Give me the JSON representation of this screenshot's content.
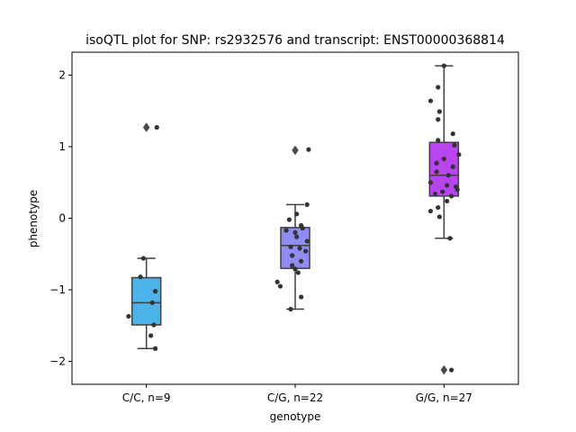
{
  "chart_data": {
    "type": "box",
    "title": "isoQTL plot for SNP: rs2932576 and transcript: ENST00000368814",
    "xlabel": "genotype",
    "ylabel": "phenotype",
    "ylim": [
      -2.32,
      2.32
    ],
    "yticks": [
      -2,
      -1,
      0,
      1,
      2
    ],
    "yticklabels": [
      "−2",
      "−1",
      "0",
      "1",
      "2"
    ],
    "categories": [
      "C/C, n=9",
      "C/G, n=22",
      "G/G, n=27"
    ],
    "grid": false,
    "boxes": [
      {
        "category": "C/C, n=9",
        "color": "#4cb2ea",
        "q1": -1.49,
        "median": -1.18,
        "q3": -0.83,
        "whisker_low": -1.82,
        "whisker_high": -0.56,
        "outliers": [
          1.27
        ],
        "points": [
          {
            "x": 0.07,
            "y": 1.27
          },
          {
            "x": -0.02,
            "y": -0.56
          },
          {
            "x": -0.04,
            "y": -0.82
          },
          {
            "x": 0.06,
            "y": -1.02
          },
          {
            "x": 0.04,
            "y": -1.18
          },
          {
            "x": -0.12,
            "y": -1.37
          },
          {
            "x": 0.05,
            "y": -1.49
          },
          {
            "x": 0.03,
            "y": -1.64
          },
          {
            "x": 0.06,
            "y": -1.82
          }
        ]
      },
      {
        "category": "C/G, n=22",
        "color": "#8f8cf3",
        "q1": -0.7,
        "median": -0.38,
        "q3": -0.13,
        "whisker_low": -1.27,
        "whisker_high": 0.19,
        "outliers": [
          0.95
        ],
        "points": [
          {
            "x": 0.09,
            "y": 0.96
          },
          {
            "x": 0.08,
            "y": 0.19
          },
          {
            "x": -0.04,
            "y": -0.02
          },
          {
            "x": 0.01,
            "y": 0.06
          },
          {
            "x": 0.04,
            "y": -0.1
          },
          {
            "x": 0.05,
            "y": -0.14
          },
          {
            "x": -0.06,
            "y": -0.17
          },
          {
            "x": 0.0,
            "y": -0.2
          },
          {
            "x": 0.01,
            "y": -0.26
          },
          {
            "x": 0.08,
            "y": -0.32
          },
          {
            "x": -0.03,
            "y": -0.4
          },
          {
            "x": 0.03,
            "y": -0.42
          },
          {
            "x": 0.07,
            "y": -0.46
          },
          {
            "x": -0.02,
            "y": -0.52
          },
          {
            "x": 0.04,
            "y": -0.6
          },
          {
            "x": -0.02,
            "y": -0.66
          },
          {
            "x": 0.0,
            "y": -0.71
          },
          {
            "x": 0.02,
            "y": -0.76
          },
          {
            "x": -0.12,
            "y": -0.89
          },
          {
            "x": -0.1,
            "y": -0.95
          },
          {
            "x": 0.04,
            "y": -1.1
          },
          {
            "x": -0.03,
            "y": -1.27
          }
        ]
      },
      {
        "category": "G/G, n=27",
        "color": "#b845f0",
        "q1": 0.31,
        "median": 0.6,
        "q3": 1.06,
        "whisker_low": -0.28,
        "whisker_high": 2.13,
        "outliers": [
          -2.12
        ],
        "points": [
          {
            "x": 0.0,
            "y": 2.13
          },
          {
            "x": -0.04,
            "y": 1.83
          },
          {
            "x": -0.09,
            "y": 1.64
          },
          {
            "x": -0.03,
            "y": 1.49
          },
          {
            "x": -0.04,
            "y": 1.38
          },
          {
            "x": 0.06,
            "y": 1.18
          },
          {
            "x": -0.04,
            "y": 1.09
          },
          {
            "x": 0.07,
            "y": 1.02
          },
          {
            "x": 0.1,
            "y": 0.89
          },
          {
            "x": 0.0,
            "y": 0.83
          },
          {
            "x": -0.05,
            "y": 0.77
          },
          {
            "x": 0.06,
            "y": 0.72
          },
          {
            "x": -0.05,
            "y": 0.65
          },
          {
            "x": 0.03,
            "y": 0.6
          },
          {
            "x": -0.09,
            "y": 0.5
          },
          {
            "x": 0.02,
            "y": 0.46
          },
          {
            "x": 0.08,
            "y": 0.44
          },
          {
            "x": 0.09,
            "y": 0.4
          },
          {
            "x": -0.01,
            "y": 0.37
          },
          {
            "x": -0.06,
            "y": 0.34
          },
          {
            "x": 0.05,
            "y": 0.31
          },
          {
            "x": 0.02,
            "y": 0.24
          },
          {
            "x": -0.04,
            "y": 0.15
          },
          {
            "x": -0.09,
            "y": 0.1
          },
          {
            "x": -0.03,
            "y": 0.02
          },
          {
            "x": 0.04,
            "y": -0.28
          },
          {
            "x": 0.05,
            "y": -2.12
          }
        ]
      }
    ]
  }
}
